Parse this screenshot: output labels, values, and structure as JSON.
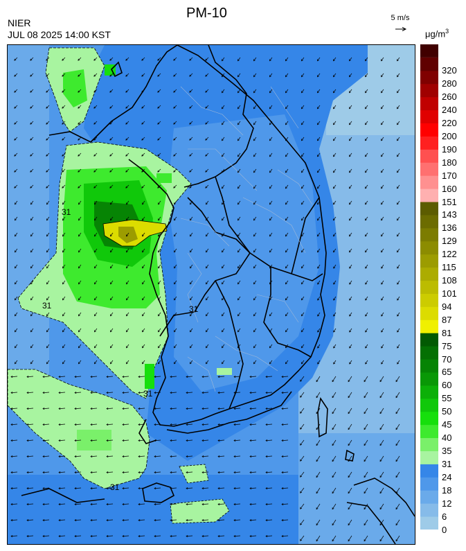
{
  "header": {
    "org": "NIER",
    "timestamp": "JUL 08 2025 14:00 KST",
    "title": "PM-10",
    "wind_ref": "5 m/s",
    "unit": "μg/m",
    "unit_sup": "3"
  },
  "map": {
    "contour_labels": [
      {
        "text": "31",
        "where": "west coast north"
      },
      {
        "text": "31",
        "where": "west sea middle"
      },
      {
        "text": "31",
        "where": "inland west"
      },
      {
        "text": "31",
        "where": "south west coast"
      },
      {
        "text": "31",
        "where": "south sea"
      }
    ]
  },
  "legend": {
    "bins": [
      {
        "label": "0",
        "color": "#9ecbe8"
      },
      {
        "label": "6",
        "color": "#86bbe9"
      },
      {
        "label": "12",
        "color": "#6aaaea"
      },
      {
        "label": "18",
        "color": "#4f98ea"
      },
      {
        "label": "24",
        "color": "#3586e8"
      },
      {
        "label": "31",
        "color": "#a8f4a0"
      },
      {
        "label": "35",
        "color": "#7af06a"
      },
      {
        "label": "40",
        "color": "#3eea2e"
      },
      {
        "label": "45",
        "color": "#16df0c"
      },
      {
        "label": "50",
        "color": "#10c80a"
      },
      {
        "label": "55",
        "color": "#0cb008"
      },
      {
        "label": "60",
        "color": "#099806"
      },
      {
        "label": "65",
        "color": "#068404"
      },
      {
        "label": "70",
        "color": "#047003"
      },
      {
        "label": "75",
        "color": "#025a02"
      },
      {
        "label": "81",
        "color": "#f0f000"
      },
      {
        "label": "87",
        "color": "#dcdc00"
      },
      {
        "label": "94",
        "color": "#cccc00"
      },
      {
        "label": "101",
        "color": "#bcbc00"
      },
      {
        "label": "108",
        "color": "#acac00"
      },
      {
        "label": "115",
        "color": "#9c9c00"
      },
      {
        "label": "122",
        "color": "#8c8c00"
      },
      {
        "label": "129",
        "color": "#7c7c00"
      },
      {
        "label": "136",
        "color": "#6c6c00"
      },
      {
        "label": "143",
        "color": "#5c5c00"
      },
      {
        "label": "151",
        "color": "#ffb0b0"
      },
      {
        "label": "160",
        "color": "#ff9090"
      },
      {
        "label": "170",
        "color": "#ff7070"
      },
      {
        "label": "180",
        "color": "#ff5050"
      },
      {
        "label": "190",
        "color": "#ff2020"
      },
      {
        "label": "200",
        "color": "#ff0000"
      },
      {
        "label": "220",
        "color": "#e00000"
      },
      {
        "label": "240",
        "color": "#c00000"
      },
      {
        "label": "260",
        "color": "#a00000"
      },
      {
        "label": "280",
        "color": "#800000"
      },
      {
        "label": "320",
        "color": "#600000"
      }
    ],
    "top_color": "#400000"
  }
}
